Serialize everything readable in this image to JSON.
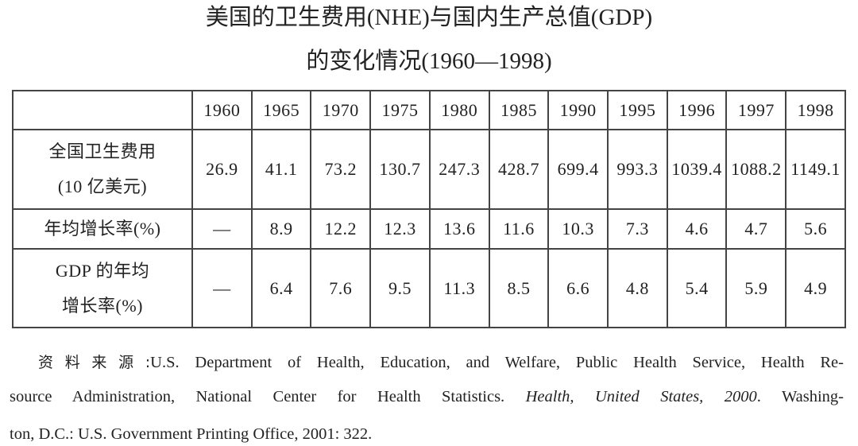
{
  "title": {
    "line1": "美国的卫生费用(NHE)与国内生产总值(GDP)",
    "line2": "的变化情况(1960—1998)"
  },
  "table": {
    "years": [
      "1960",
      "1965",
      "1970",
      "1975",
      "1980",
      "1985",
      "1990",
      "1995",
      "1996",
      "1997",
      "1998"
    ],
    "rows": [
      {
        "label1": "全国卫生费用",
        "label2": "(10 亿美元)",
        "values": [
          "26.9",
          "41.1",
          "73.2",
          "130.7",
          "247.3",
          "428.7",
          "699.4",
          "993.3",
          "1039.4",
          "1088.2",
          "1149.1"
        ]
      },
      {
        "label1": "年均增长率(%)",
        "values": [
          "—",
          "8.9",
          "12.2",
          "12.3",
          "13.6",
          "11.6",
          "10.3",
          "7.3",
          "4.6",
          "4.7",
          "5.6"
        ]
      },
      {
        "label1": "GDP 的年均",
        "label2": "增长率(%)",
        "values": [
          "—",
          "6.4",
          "7.6",
          "9.5",
          "11.3",
          "8.5",
          "6.6",
          "4.8",
          "5.4",
          "5.9",
          "4.9"
        ]
      }
    ]
  },
  "source": {
    "prefix": "资料来源:",
    "line1": "U.S. Department of Health, Education, and Welfare, Public Health Service, Health Re-",
    "line2a": "source Administration, National Center for Health Statistics.",
    "line2_italic": "Health, United States, 2000",
    "line2b": ". Washing-",
    "line3": "ton, D.C.: U.S. Government Printing Office, 2001: 322."
  }
}
